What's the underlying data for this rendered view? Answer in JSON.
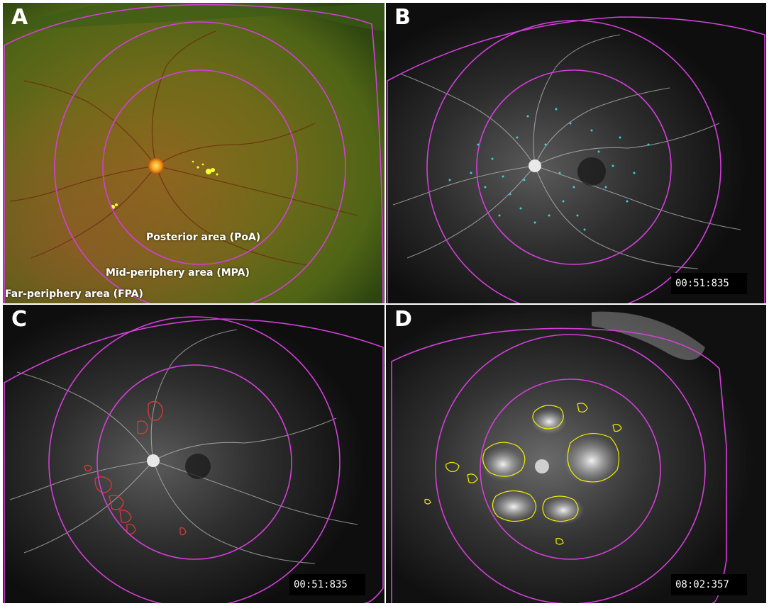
{
  "colors": {
    "zone_ring": "#d23fd8",
    "nonperfusion_dots": "#38d2df",
    "leakage_outline_red": "#e03a3a",
    "leakage_outline_yellow": "#f2f000"
  },
  "panels": [
    {
      "letter": "A"
    },
    {
      "letter": "B",
      "timestamp": "00:51:835"
    },
    {
      "letter": "C",
      "timestamp": "00:51:835"
    },
    {
      "letter": "D",
      "timestamp": "08:02:357"
    }
  ],
  "zone_labels": {
    "posterior": "Posterior area (PoA)",
    "mid": "Mid-periphery area (MPA)",
    "far": "Far-periphery area (FPA)"
  }
}
